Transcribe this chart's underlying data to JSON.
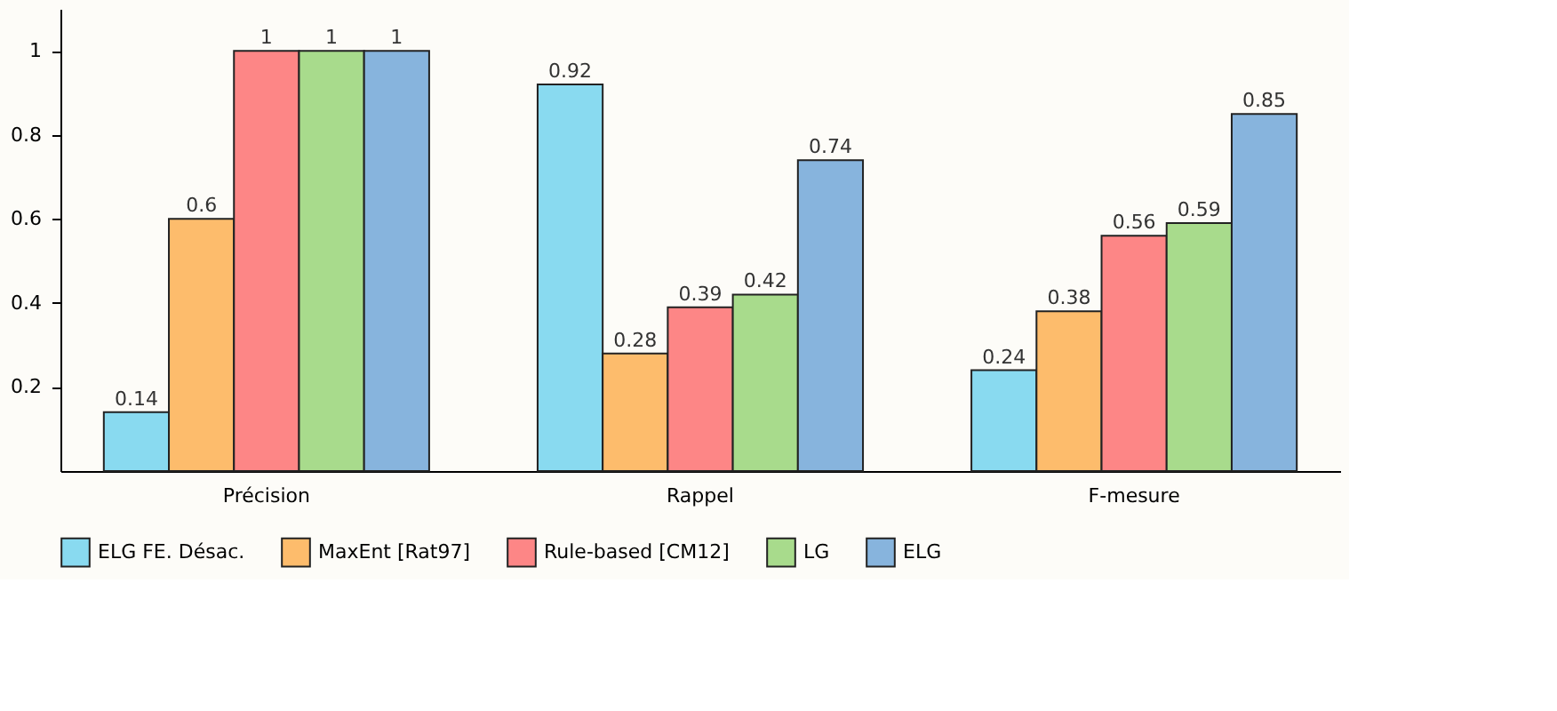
{
  "chart_data": {
    "type": "bar",
    "categories": [
      "Précision",
      "Rappel",
      "F-mesure"
    ],
    "series": [
      {
        "name": "ELG FE. Désac.",
        "color": "#89daf0",
        "values": [
          0.14,
          0.92,
          0.24
        ]
      },
      {
        "name": "MaxEnt [Rat97]",
        "color": "#fdbc6c",
        "values": [
          0.6,
          0.28,
          0.38
        ]
      },
      {
        "name": "Rule-based [CM12]",
        "color": "#fd8686",
        "values": [
          1,
          0.39,
          0.56
        ]
      },
      {
        "name": "LG",
        "color": "#a8db8c",
        "values": [
          1,
          0.42,
          0.59
        ]
      },
      {
        "name": "ELG",
        "color": "#87b4dd",
        "values": [
          1,
          0.74,
          0.85
        ]
      }
    ],
    "ylim": [
      0,
      1.1
    ],
    "yticks": [
      0.2,
      0.4,
      0.6,
      0.8,
      1
    ],
    "grid": false,
    "legend": "bottom",
    "data_labels": true
  }
}
